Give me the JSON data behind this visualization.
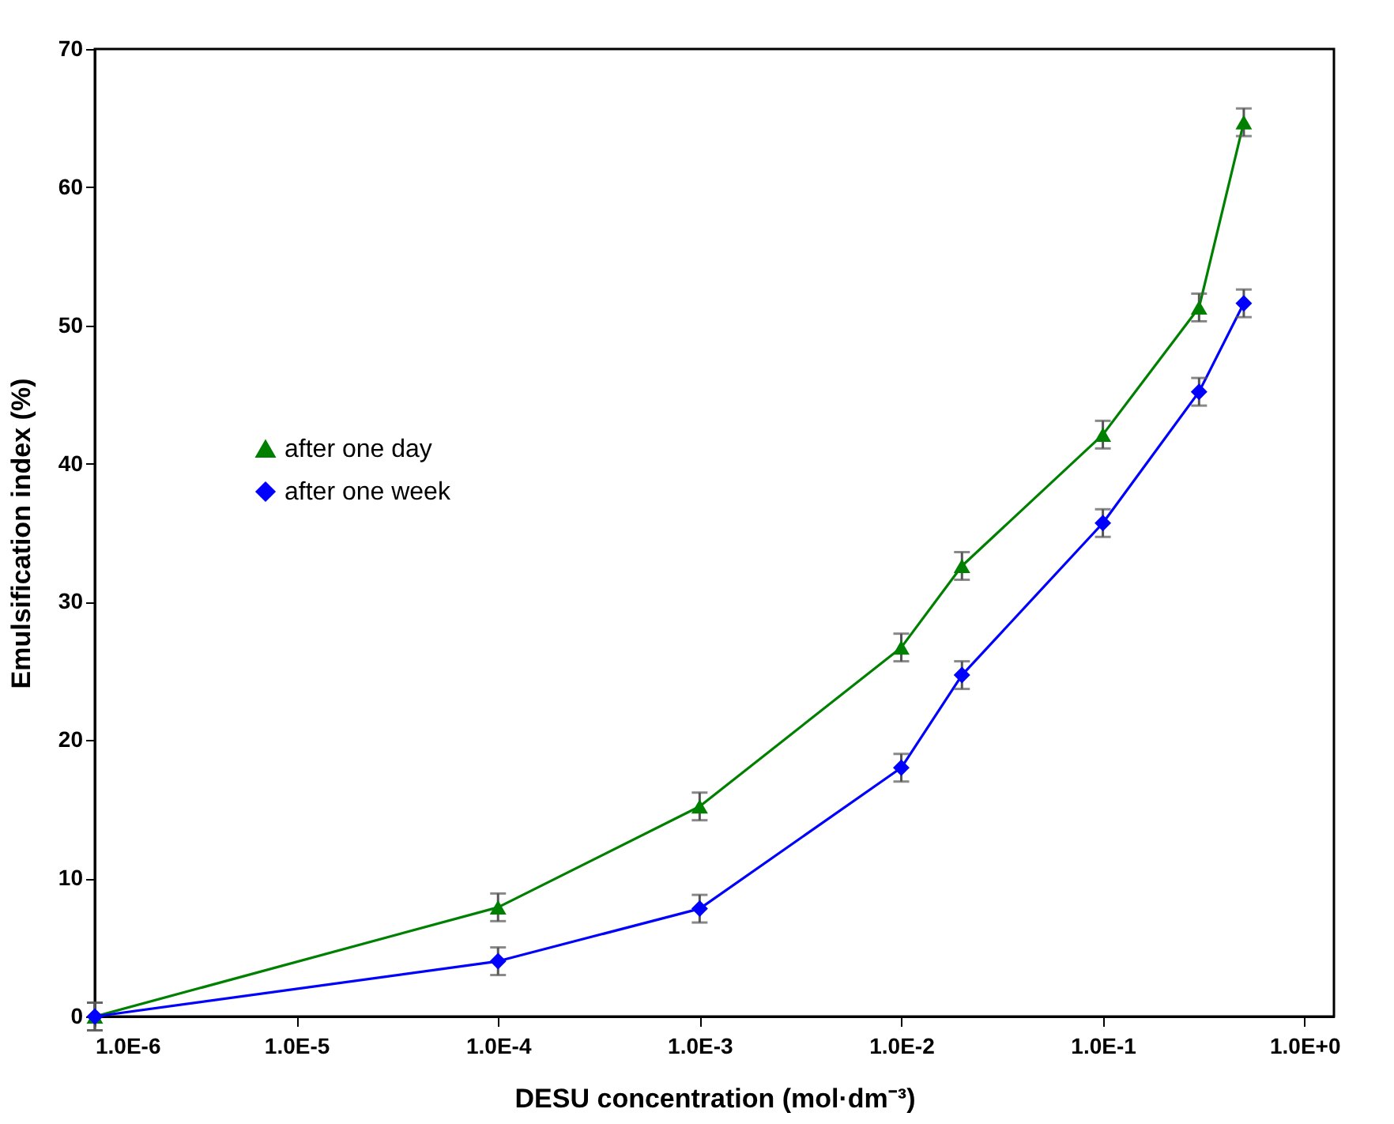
{
  "chart_data": {
    "type": "line",
    "xlabel": "DESU concentration (mol·dm⁻³)",
    "ylabel": "Emulsification index (%)",
    "log": "x",
    "xlim": [
      1e-06,
      1.4
    ],
    "xticks": [
      {
        "value": 1e-06,
        "label": "1.0E-6"
      },
      {
        "value": 1e-05,
        "label": "1.0E-5"
      },
      {
        "value": 0.0001,
        "label": "1.0E-4"
      },
      {
        "value": 0.001,
        "label": "1.0E-3"
      },
      {
        "value": 0.01,
        "label": "1.0E-2"
      },
      {
        "value": 0.1,
        "label": "1.0E-1"
      },
      {
        "value": 1,
        "label": "1.0E+0"
      }
    ],
    "ylim": [
      0,
      70
    ],
    "yticks": [
      0,
      10,
      20,
      30,
      40,
      50,
      60,
      70
    ],
    "grid": false,
    "legend": "left",
    "x": [
      1e-06,
      0.0001,
      0.001,
      0.01,
      0.02,
      0.1,
      0.3,
      0.5
    ],
    "series": [
      {
        "name": "after one day",
        "color": "#008000",
        "marker": "triangle",
        "values": [
          0,
          7.9,
          15.2,
          26.7,
          32.6,
          42.1,
          51.3,
          64.7
        ],
        "errors": [
          1,
          1,
          1,
          1,
          1,
          1,
          1,
          1
        ]
      },
      {
        "name": "after one week",
        "color": "#0000ff",
        "marker": "diamond",
        "values": [
          0,
          4.0,
          7.8,
          18.0,
          24.7,
          35.7,
          45.2,
          51.6
        ],
        "errors": [
          1,
          1,
          1,
          1,
          1,
          1,
          1,
          1
        ]
      }
    ]
  }
}
